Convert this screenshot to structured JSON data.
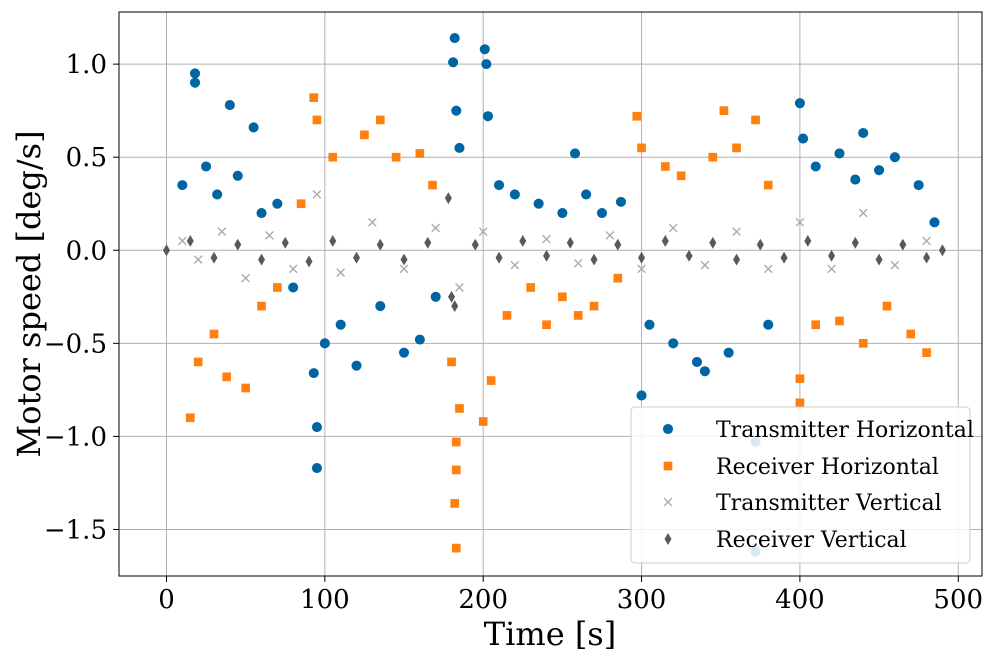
{
  "chart_data": {
    "type": "scatter",
    "title": "",
    "xlabel": "Time [s]",
    "ylabel": "Motor speed [deg/s]",
    "xlim": [
      -30,
      515
    ],
    "ylim": [
      -1.75,
      1.28
    ],
    "xticks": [
      0,
      100,
      200,
      300,
      400,
      500
    ],
    "xtick_labels": [
      "0",
      "100",
      "200",
      "300",
      "400",
      "500"
    ],
    "yticks": [
      -1.5,
      -1.0,
      -0.5,
      0.0,
      0.5,
      1.0
    ],
    "ytick_labels": [
      "−1.5",
      "−1.0",
      "−0.5",
      "0.0",
      "0.5",
      "1.0"
    ],
    "grid": true,
    "legend_position": "lower-right",
    "series": [
      {
        "name": "Transmitter Horizontal",
        "marker": "circle",
        "color": "#0065a3",
        "points": [
          [
            18,
            0.95
          ],
          [
            18,
            0.9
          ],
          [
            40,
            0.78
          ],
          [
            55,
            0.66
          ],
          [
            10,
            0.35
          ],
          [
            25,
            0.45
          ],
          [
            32,
            0.3
          ],
          [
            45,
            0.4
          ],
          [
            60,
            0.2
          ],
          [
            70,
            0.25
          ],
          [
            80,
            -0.2
          ],
          [
            95,
            -0.95
          ],
          [
            95,
            -1.17
          ],
          [
            93,
            -0.66
          ],
          [
            100,
            -0.5
          ],
          [
            110,
            -0.4
          ],
          [
            120,
            -0.62
          ],
          [
            135,
            -0.3
          ],
          [
            150,
            -0.55
          ],
          [
            160,
            -0.48
          ],
          [
            170,
            -0.25
          ],
          [
            182,
            1.14
          ],
          [
            181,
            1.01
          ],
          [
            183,
            0.75
          ],
          [
            185,
            0.55
          ],
          [
            201,
            1.08
          ],
          [
            202,
            1.0
          ],
          [
            203,
            0.72
          ],
          [
            210,
            0.35
          ],
          [
            220,
            0.3
          ],
          [
            235,
            0.25
          ],
          [
            250,
            0.2
          ],
          [
            258,
            0.52
          ],
          [
            265,
            0.3
          ],
          [
            275,
            0.2
          ],
          [
            287,
            0.26
          ],
          [
            300,
            -0.78
          ],
          [
            305,
            -0.4
          ],
          [
            320,
            -0.5
          ],
          [
            335,
            -0.6
          ],
          [
            340,
            -0.65
          ],
          [
            355,
            -0.55
          ],
          [
            372,
            -1.62
          ],
          [
            372,
            -1.03
          ],
          [
            380,
            -0.4
          ],
          [
            400,
            0.79
          ],
          [
            402,
            0.6
          ],
          [
            410,
            0.45
          ],
          [
            425,
            0.52
          ],
          [
            435,
            0.38
          ],
          [
            440,
            0.63
          ],
          [
            450,
            0.43
          ],
          [
            460,
            0.5
          ],
          [
            475,
            0.35
          ],
          [
            485,
            0.15
          ]
        ]
      },
      {
        "name": "Receiver Horizontal",
        "marker": "square",
        "color": "#ff800e",
        "points": [
          [
            15,
            -0.9
          ],
          [
            20,
            -0.6
          ],
          [
            30,
            -0.45
          ],
          [
            38,
            -0.68
          ],
          [
            50,
            -0.74
          ],
          [
            60,
            -0.3
          ],
          [
            70,
            -0.2
          ],
          [
            85,
            0.25
          ],
          [
            93,
            0.82
          ],
          [
            95,
            0.7
          ],
          [
            105,
            0.5
          ],
          [
            125,
            0.62
          ],
          [
            135,
            0.7
          ],
          [
            145,
            0.5
          ],
          [
            160,
            0.52
          ],
          [
            168,
            0.35
          ],
          [
            180,
            -0.6
          ],
          [
            183,
            -1.6
          ],
          [
            182,
            -1.36
          ],
          [
            183,
            -1.18
          ],
          [
            183,
            -1.03
          ],
          [
            185,
            -0.85
          ],
          [
            200,
            -0.92
          ],
          [
            205,
            -0.7
          ],
          [
            215,
            -0.35
          ],
          [
            230,
            -0.2
          ],
          [
            240,
            -0.4
          ],
          [
            250,
            -0.25
          ],
          [
            260,
            -0.35
          ],
          [
            270,
            -0.3
          ],
          [
            285,
            -0.15
          ],
          [
            297,
            0.72
          ],
          [
            300,
            0.55
          ],
          [
            315,
            0.45
          ],
          [
            325,
            0.4
          ],
          [
            345,
            0.5
          ],
          [
            352,
            0.75
          ],
          [
            360,
            0.55
          ],
          [
            372,
            0.7
          ],
          [
            380,
            0.35
          ],
          [
            400,
            -0.82
          ],
          [
            400,
            -0.69
          ],
          [
            410,
            -0.4
          ],
          [
            425,
            -0.38
          ],
          [
            440,
            -0.5
          ],
          [
            455,
            -0.3
          ],
          [
            470,
            -0.45
          ],
          [
            480,
            -0.55
          ]
        ]
      },
      {
        "name": "Transmitter Vertical",
        "marker": "x",
        "color": "#ababab",
        "points": [
          [
            10,
            0.05
          ],
          [
            20,
            -0.05
          ],
          [
            35,
            0.1
          ],
          [
            50,
            -0.15
          ],
          [
            65,
            0.08
          ],
          [
            80,
            -0.1
          ],
          [
            95,
            0.3
          ],
          [
            110,
            -0.12
          ],
          [
            130,
            0.15
          ],
          [
            150,
            -0.1
          ],
          [
            170,
            0.12
          ],
          [
            185,
            -0.2
          ],
          [
            200,
            0.1
          ],
          [
            220,
            -0.08
          ],
          [
            240,
            0.06
          ],
          [
            260,
            -0.07
          ],
          [
            280,
            0.08
          ],
          [
            300,
            -0.1
          ],
          [
            320,
            0.12
          ],
          [
            340,
            -0.08
          ],
          [
            360,
            0.1
          ],
          [
            380,
            -0.1
          ],
          [
            400,
            0.15
          ],
          [
            420,
            -0.1
          ],
          [
            440,
            0.2
          ],
          [
            460,
            -0.08
          ],
          [
            480,
            0.05
          ]
        ]
      },
      {
        "name": "Receiver Vertical",
        "marker": "diamond",
        "color": "#595959",
        "points": [
          [
            0,
            0.0
          ],
          [
            15,
            0.05
          ],
          [
            30,
            -0.04
          ],
          [
            45,
            0.03
          ],
          [
            60,
            -0.05
          ],
          [
            75,
            0.04
          ],
          [
            90,
            -0.06
          ],
          [
            105,
            0.05
          ],
          [
            120,
            -0.04
          ],
          [
            135,
            0.03
          ],
          [
            150,
            -0.05
          ],
          [
            165,
            0.04
          ],
          [
            178,
            0.28
          ],
          [
            180,
            -0.25
          ],
          [
            182,
            -0.3
          ],
          [
            195,
            0.03
          ],
          [
            210,
            -0.04
          ],
          [
            225,
            0.05
          ],
          [
            240,
            -0.03
          ],
          [
            255,
            0.04
          ],
          [
            270,
            -0.05
          ],
          [
            285,
            0.03
          ],
          [
            300,
            -0.04
          ],
          [
            315,
            0.05
          ],
          [
            330,
            -0.03
          ],
          [
            345,
            0.04
          ],
          [
            360,
            -0.05
          ],
          [
            375,
            0.03
          ],
          [
            390,
            -0.04
          ],
          [
            405,
            0.05
          ],
          [
            420,
            -0.03
          ],
          [
            435,
            0.04
          ],
          [
            450,
            -0.05
          ],
          [
            465,
            0.03
          ],
          [
            480,
            -0.04
          ],
          [
            490,
            0.0
          ]
        ]
      }
    ]
  }
}
